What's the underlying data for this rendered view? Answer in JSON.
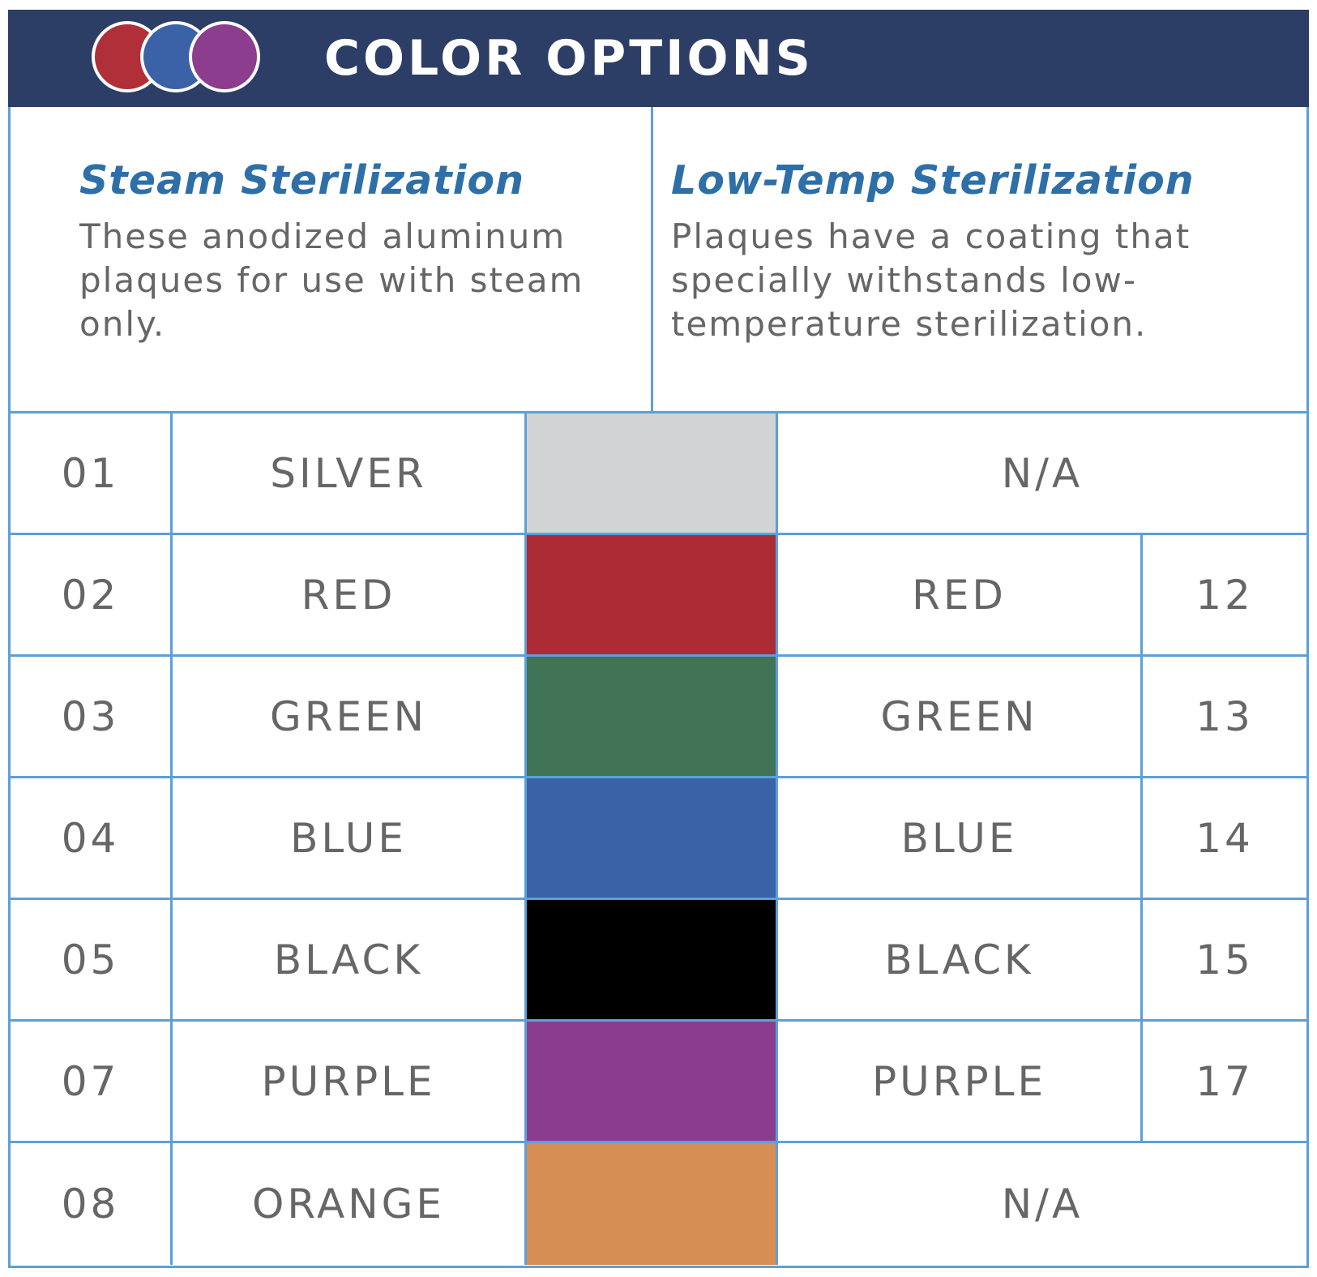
{
  "header": {
    "title": "COLOR OPTIONS",
    "dot_colors": [
      "#b02f38",
      "#3b62a6",
      "#8c3d8e"
    ]
  },
  "intro": {
    "steam": {
      "heading": "Steam Sterilization",
      "text": "These anodized aluminum plaques for use with steam only."
    },
    "lowtemp": {
      "heading": "Low-Temp Sterilization",
      "text": "Plaques have a coating that specially withstands low-temperature sterilization."
    }
  },
  "rows": [
    {
      "code": "01",
      "name": "SILVER",
      "swatch": "#d1d3d5",
      "lt_name": "N/A",
      "lt_code": ""
    },
    {
      "code": "02",
      "name": "RED",
      "swatch": "#ad2b35",
      "lt_name": "RED",
      "lt_code": "12"
    },
    {
      "code": "03",
      "name": "GREEN",
      "swatch": "#417457",
      "lt_name": "GREEN",
      "lt_code": "13"
    },
    {
      "code": "04",
      "name": "BLUE",
      "swatch": "#3a62a6",
      "lt_name": "BLUE",
      "lt_code": "14"
    },
    {
      "code": "05",
      "name": "BLACK",
      "swatch": "#000000",
      "lt_name": "BLACK",
      "lt_code": "15"
    },
    {
      "code": "07",
      "name": "PURPLE",
      "swatch": "#8b3d8d",
      "lt_name": "PURPLE",
      "lt_code": "17"
    },
    {
      "code": "08",
      "name": "ORANGE",
      "swatch": "#d68e55",
      "lt_name": "N/A",
      "lt_code": ""
    }
  ],
  "colors": {
    "banner": "#2c3d66",
    "border": "#5ca0d8",
    "heading": "#2e6fa8",
    "text": "#666666"
  }
}
